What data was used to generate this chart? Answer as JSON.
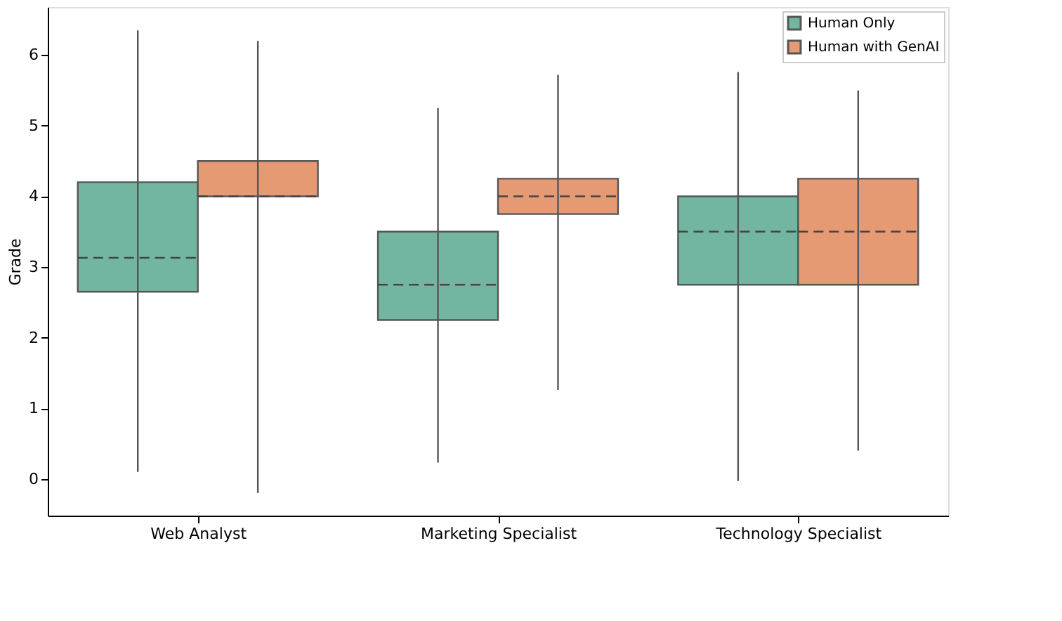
{
  "chart_data": {
    "type": "box",
    "ylabel": "Grade",
    "categories": [
      "Web Analyst",
      "Marketing Specialist",
      "Technology Specialist"
    ],
    "ylim": [
      -0.52,
      6.68
    ],
    "yticks": [
      0,
      1,
      2,
      3,
      4,
      5,
      6
    ],
    "grid": false,
    "legend": "top right",
    "series": [
      {
        "name": "Human Only",
        "color": "#72b6a1",
        "boxes": [
          {
            "low": 0.1,
            "q1": 2.65,
            "median": 3.13,
            "q3": 4.2,
            "high": 6.35
          },
          {
            "low": 0.23,
            "q1": 2.25,
            "median": 2.75,
            "q3": 3.5,
            "high": 5.25
          },
          {
            "low": -0.03,
            "q1": 2.75,
            "median": 3.5,
            "q3": 4.0,
            "high": 5.76
          }
        ]
      },
      {
        "name": "Human with GenAI",
        "color": "#e59a74",
        "boxes": [
          {
            "low": -0.2,
            "q1": 4.0,
            "median": 4.0,
            "q3": 4.5,
            "high": 6.2
          },
          {
            "low": 1.26,
            "q1": 3.75,
            "median": 4.0,
            "q3": 4.25,
            "high": 5.72
          },
          {
            "low": 0.4,
            "q1": 2.75,
            "median": 3.5,
            "q3": 4.25,
            "high": 5.5
          }
        ]
      }
    ]
  }
}
